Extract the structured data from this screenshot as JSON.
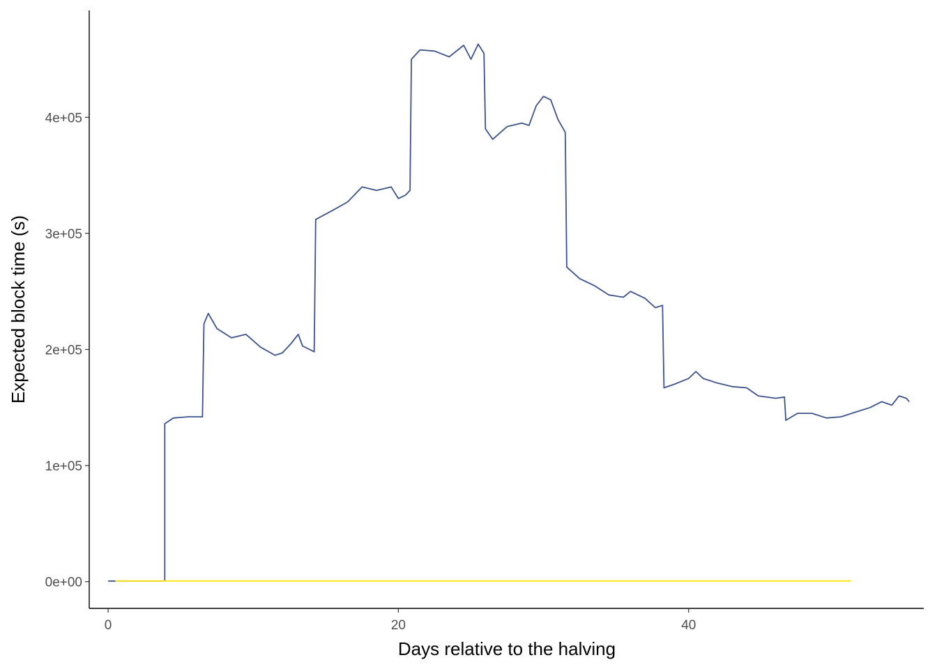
{
  "chart_data": {
    "type": "line",
    "title": "",
    "xlabel": "Days relative to the halving",
    "ylabel": "Expected block time (s)",
    "xlim": [
      -1.3,
      56.2
    ],
    "ylim": [
      -23000,
      492000
    ],
    "x_ticks": [
      0,
      20,
      40
    ],
    "x_tick_labels": [
      "0",
      "20",
      "40"
    ],
    "y_ticks": [
      0,
      100000,
      200000,
      300000,
      400000
    ],
    "y_tick_labels": [
      "0e+00",
      "1e+05",
      "2e+05",
      "3e+05",
      "4e+05"
    ],
    "grid": false,
    "legend": "none",
    "series": [
      {
        "color": "#3b528b",
        "points": [
          [
            0,
            500
          ],
          [
            3.9,
            500
          ],
          [
            3.9,
            136000
          ],
          [
            4.5,
            141000
          ],
          [
            5.5,
            142000
          ],
          [
            6.5,
            142000
          ],
          [
            6.6,
            222000
          ],
          [
            6.9,
            231000
          ],
          [
            7.5,
            218000
          ],
          [
            8.5,
            210000
          ],
          [
            9.5,
            213000
          ],
          [
            10.5,
            202000
          ],
          [
            11.5,
            195000
          ],
          [
            12.0,
            197000
          ],
          [
            12.6,
            205000
          ],
          [
            13.1,
            213000
          ],
          [
            13.4,
            203000
          ],
          [
            14.2,
            198000
          ],
          [
            14.3,
            312000
          ],
          [
            15.5,
            320000
          ],
          [
            16.5,
            327000
          ],
          [
            17.5,
            340000
          ],
          [
            18.5,
            337000
          ],
          [
            19.5,
            340000
          ],
          [
            20.0,
            330000
          ],
          [
            20.5,
            333000
          ],
          [
            20.8,
            337000
          ],
          [
            20.9,
            450000
          ],
          [
            21.5,
            458000
          ],
          [
            22.5,
            457000
          ],
          [
            23.5,
            452000
          ],
          [
            24.5,
            462000
          ],
          [
            25.0,
            450000
          ],
          [
            25.5,
            463000
          ],
          [
            25.9,
            455000
          ],
          [
            26.0,
            390000
          ],
          [
            26.5,
            381000
          ],
          [
            27.5,
            392000
          ],
          [
            28.5,
            395000
          ],
          [
            29.0,
            393000
          ],
          [
            29.5,
            410000
          ],
          [
            30.0,
            418000
          ],
          [
            30.5,
            415000
          ],
          [
            31.0,
            398000
          ],
          [
            31.5,
            387000
          ],
          [
            31.6,
            271000
          ],
          [
            32.5,
            261000
          ],
          [
            33.5,
            255000
          ],
          [
            34.5,
            247000
          ],
          [
            35.5,
            245000
          ],
          [
            36.0,
            250000
          ],
          [
            37.0,
            244000
          ],
          [
            37.7,
            236000
          ],
          [
            38.2,
            238000
          ],
          [
            38.3,
            167000
          ],
          [
            39.0,
            170000
          ],
          [
            40.0,
            175000
          ],
          [
            40.5,
            181000
          ],
          [
            41.0,
            175000
          ],
          [
            42.0,
            171000
          ],
          [
            43.0,
            168000
          ],
          [
            44.0,
            167000
          ],
          [
            44.8,
            160000
          ],
          [
            46.0,
            158000
          ],
          [
            46.6,
            159000
          ],
          [
            46.7,
            139000
          ],
          [
            47.5,
            145000
          ],
          [
            48.5,
            145000
          ],
          [
            49.5,
            141000
          ],
          [
            50.5,
            142000
          ],
          [
            51.5,
            146000
          ],
          [
            52.5,
            150000
          ],
          [
            53.3,
            155000
          ],
          [
            54.0,
            152000
          ],
          [
            54.5,
            160000
          ],
          [
            55.0,
            158000
          ],
          [
            55.2,
            155000
          ]
        ]
      },
      {
        "color": "#fde725",
        "points": [
          [
            0.5,
            600
          ],
          [
            51.2,
            600
          ]
        ]
      }
    ]
  }
}
